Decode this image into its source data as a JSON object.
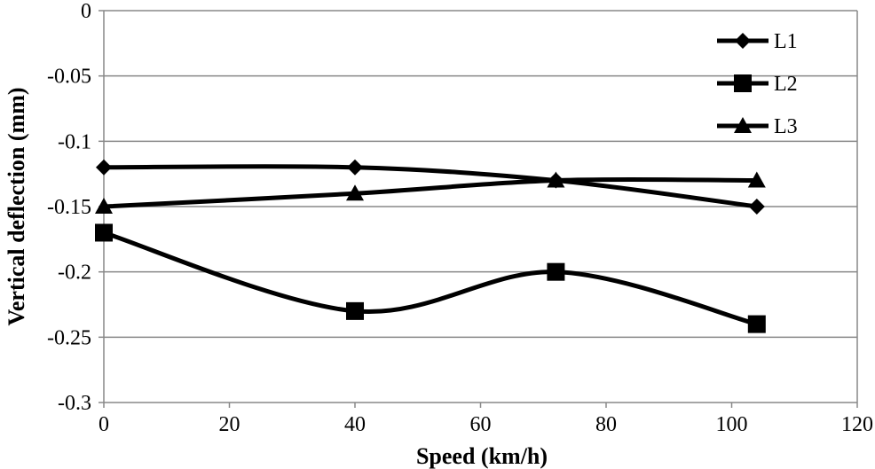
{
  "chart_data": {
    "type": "line",
    "title": "",
    "xlabel": "Speed (km/h)",
    "ylabel": "Vertical deflection (mm)",
    "xlim": [
      0,
      120
    ],
    "ylim": [
      -0.3,
      0
    ],
    "x_ticks": [
      0,
      20,
      40,
      60,
      80,
      100,
      120
    ],
    "y_ticks": [
      0,
      -0.05,
      -0.1,
      -0.15,
      -0.2,
      -0.25,
      -0.3
    ],
    "x_tick_labels": [
      "0",
      "20",
      "40",
      "60",
      "80",
      "100",
      "120"
    ],
    "y_tick_labels": [
      "0",
      "-0.05",
      "-0.1",
      "-0.15",
      "-0.2",
      "-0.25",
      "-0.3"
    ],
    "grid": "horizontal",
    "legend_position": "top-right",
    "series": [
      {
        "name": "L1",
        "marker": "diamond",
        "x": [
          0,
          40,
          72,
          104
        ],
        "values": [
          -0.12,
          -0.12,
          -0.13,
          -0.15
        ]
      },
      {
        "name": "L2",
        "marker": "square",
        "x": [
          0,
          40,
          72,
          104
        ],
        "values": [
          -0.17,
          -0.23,
          -0.2,
          -0.24
        ]
      },
      {
        "name": "L3",
        "marker": "triangle",
        "x": [
          0,
          40,
          72,
          104
        ],
        "values": [
          -0.15,
          -0.14,
          -0.13,
          -0.13
        ]
      }
    ],
    "colors": {
      "line": "#000000",
      "grid": "#888888",
      "axis": "#888888"
    }
  }
}
